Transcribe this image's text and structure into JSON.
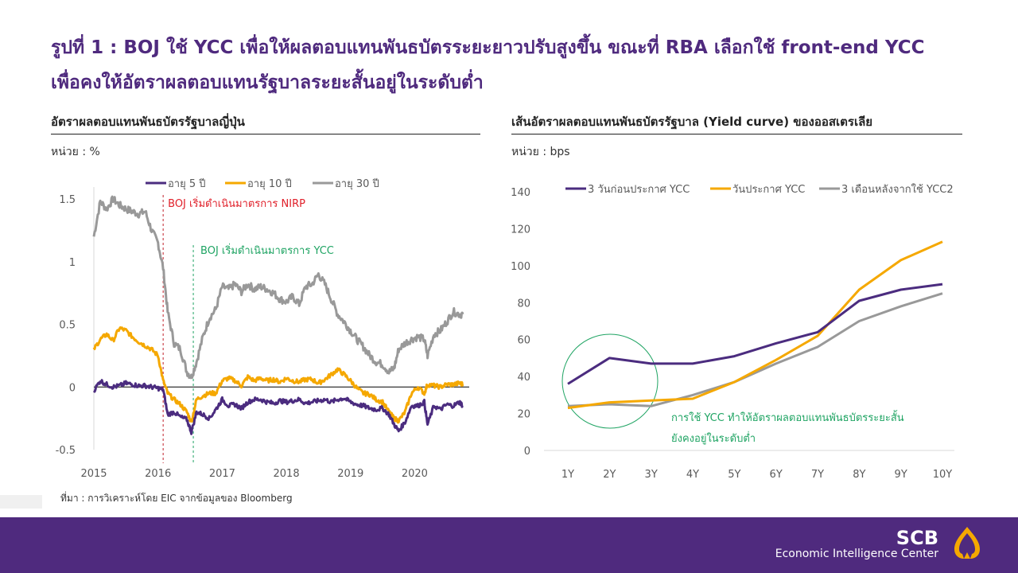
{
  "slide": {
    "title_line1": "รูปที่ 1 : BOJ ใช้ YCC เพื่อให้ผลตอบแทนพันธบัตรระยะยาวปรับสูงขึ้น ขณะที่ RBA เลือกใช้ front-end YCC",
    "title_line2": "เพื่อคงให้อัตราผลตอบแทนรัฐบาลระยะสั้นอยู่ในระดับต่ำ",
    "source": "ที่มา : การวิเคราะห์โดย EIC จากข้อมูลของ Bloomberg",
    "colors": {
      "brand_purple": "#4f2a7e",
      "series_purple": "#4b2c7f",
      "series_orange": "#f5a800",
      "series_gray": "#999999",
      "annotation_red": "#e0202a",
      "annotation_green": "#1fa463"
    }
  },
  "footer": {
    "logo_name": "SCB",
    "logo_subtitle": "Economic Intelligence Center",
    "logo_icon": "scb-lotus-icon"
  },
  "chart_data": [
    {
      "type": "line",
      "title": "อัตราผลตอบแทนพันธบัตรรัฐบาลญี่ปุ่น",
      "unit_label": "หน่วย : %",
      "xlabel": "",
      "ylabel": "",
      "x_ticks": [
        "2015",
        "2016",
        "2017",
        "2018",
        "2019",
        "2020"
      ],
      "x_range": [
        2015.0,
        2020.75
      ],
      "y_ticks": [
        "-0.5",
        "0",
        "0.5",
        "1",
        "1.5"
      ],
      "ylim": [
        -0.5,
        1.5
      ],
      "grid": false,
      "legend": "top",
      "annotations": [
        {
          "label": "BOJ เริ่มดำเนินมาตรการ NIRP",
          "x": 2016.08,
          "style": "red-dashed-vline"
        },
        {
          "label": "BOJ เริ่มดำเนินมาตรการ YCC",
          "x": 2016.55,
          "style": "green-dashed-vline"
        }
      ],
      "x": [
        2015.0,
        2015.1,
        2015.2,
        2015.3,
        2015.4,
        2015.5,
        2015.6,
        2015.7,
        2015.8,
        2015.9,
        2016.0,
        2016.08,
        2016.15,
        2016.25,
        2016.35,
        2016.45,
        2016.52,
        2016.6,
        2016.7,
        2016.8,
        2016.9,
        2017.0,
        2017.1,
        2017.2,
        2017.3,
        2017.4,
        2017.5,
        2017.6,
        2017.7,
        2017.8,
        2017.9,
        2018.0,
        2018.1,
        2018.2,
        2018.3,
        2018.4,
        2018.5,
        2018.6,
        2018.7,
        2018.8,
        2018.9,
        2019.0,
        2019.1,
        2019.2,
        2019.3,
        2019.4,
        2019.5,
        2019.6,
        2019.68,
        2019.75,
        2019.85,
        2019.95,
        2020.05,
        2020.15,
        2020.2,
        2020.3,
        2020.4,
        2020.5,
        2020.6,
        2020.7,
        2020.75
      ],
      "series": [
        {
          "name": "อายุ 5 ปี",
          "color": "#4b2c7f",
          "values": [
            -0.03,
            0.05,
            0.02,
            0.0,
            0.01,
            0.03,
            0.02,
            0.01,
            0.01,
            0.0,
            -0.01,
            -0.02,
            -0.22,
            -0.2,
            -0.24,
            -0.26,
            -0.36,
            -0.2,
            -0.22,
            -0.25,
            -0.18,
            -0.1,
            -0.15,
            -0.14,
            -0.17,
            -0.12,
            -0.1,
            -0.1,
            -0.12,
            -0.13,
            -0.11,
            -0.12,
            -0.11,
            -0.1,
            -0.13,
            -0.12,
            -0.11,
            -0.1,
            -0.12,
            -0.1,
            -0.09,
            -0.12,
            -0.14,
            -0.15,
            -0.17,
            -0.18,
            -0.17,
            -0.22,
            -0.3,
            -0.35,
            -0.28,
            -0.15,
            -0.15,
            -0.12,
            -0.3,
            -0.15,
            -0.18,
            -0.14,
            -0.15,
            -0.12,
            -0.15
          ]
        },
        {
          "name": "อายุ 10 ปี",
          "color": "#f5a800",
          "values": [
            0.3,
            0.38,
            0.42,
            0.37,
            0.47,
            0.45,
            0.4,
            0.36,
            0.33,
            0.3,
            0.25,
            0.05,
            -0.05,
            -0.1,
            -0.14,
            -0.2,
            -0.28,
            -0.1,
            -0.07,
            -0.05,
            -0.05,
            0.05,
            0.07,
            0.05,
            0.01,
            0.08,
            0.05,
            0.07,
            0.05,
            0.06,
            0.04,
            0.07,
            0.05,
            0.04,
            0.06,
            0.06,
            0.03,
            0.06,
            0.1,
            0.14,
            0.1,
            0.05,
            -0.01,
            -0.05,
            -0.06,
            -0.1,
            -0.12,
            -0.2,
            -0.25,
            -0.27,
            -0.2,
            -0.05,
            0.0,
            -0.05,
            0.02,
            0.01,
            0.0,
            0.02,
            0.02,
            0.03,
            0.02
          ]
        },
        {
          "name": "อายุ 30 ปี",
          "color": "#999999",
          "values": [
            1.2,
            1.48,
            1.42,
            1.5,
            1.45,
            1.42,
            1.4,
            1.38,
            1.4,
            1.25,
            1.15,
            0.95,
            0.6,
            0.35,
            0.3,
            0.12,
            0.08,
            0.2,
            0.4,
            0.55,
            0.62,
            0.8,
            0.78,
            0.82,
            0.76,
            0.82,
            0.78,
            0.8,
            0.78,
            0.75,
            0.7,
            0.68,
            0.72,
            0.66,
            0.8,
            0.82,
            0.9,
            0.82,
            0.7,
            0.58,
            0.52,
            0.45,
            0.38,
            0.32,
            0.25,
            0.2,
            0.18,
            0.12,
            0.15,
            0.3,
            0.35,
            0.38,
            0.4,
            0.38,
            0.25,
            0.42,
            0.45,
            0.52,
            0.6,
            0.58,
            0.58
          ]
        }
      ]
    },
    {
      "type": "line",
      "title": "เส้นอัตราผลตอบแทนพันธบัตรรัฐบาล (Yield curve) ของออสเตรเลีย",
      "unit_label": "หน่วย : bps",
      "xlabel": "",
      "ylabel": "",
      "categories": [
        "1Y",
        "2Y",
        "3Y",
        "4Y",
        "5Y",
        "6Y",
        "7Y",
        "8Y",
        "9Y",
        "10Y"
      ],
      "y_ticks": [
        "0",
        "20",
        "40",
        "60",
        "80",
        "100",
        "120",
        "140"
      ],
      "ylim": [
        0,
        140
      ],
      "grid": false,
      "legend": "top",
      "annotations": [
        {
          "label_line1": "การใช้ YCC ทำให้อัตราผลตอบแทนพันธบัตรระยะสั้น",
          "label_line2": "ยังคงอยู่ในระดับต่ำ",
          "style": "green-circle",
          "target": "1Y-3Y"
        }
      ],
      "series": [
        {
          "name": "3 วันก่อนประกาศ YCC",
          "color": "#4b2c7f",
          "values": [
            36,
            50,
            47,
            47,
            51,
            58,
            64,
            81,
            87,
            90
          ]
        },
        {
          "name": "วันประกาศ YCC",
          "color": "#f5a800",
          "values": [
            23,
            26,
            27,
            28,
            37,
            49,
            62,
            87,
            103,
            113
          ]
        },
        {
          "name": "3 เดือนหลังจากใช้ YCC2",
          "color": "#999999",
          "values": [
            24,
            25,
            24,
            30,
            37,
            47,
            56,
            70,
            78,
            85
          ]
        }
      ]
    }
  ]
}
